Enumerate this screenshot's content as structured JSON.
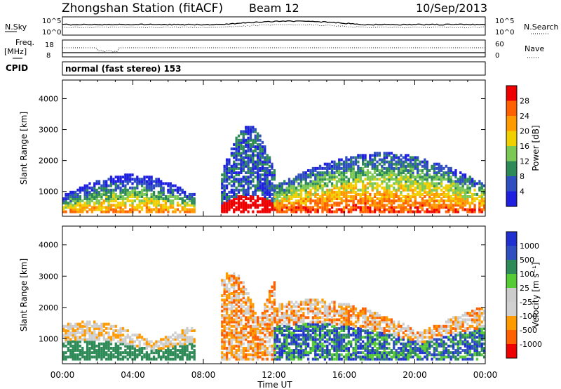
{
  "header": {
    "station": "Zhongshan Station (fitACF)",
    "beam": "Beam 12",
    "date": "10/Sep/2013"
  },
  "top_panels": {
    "nsky_label": "N.Sky",
    "nsky_ticks": [
      "10^5",
      "10^0"
    ],
    "nsearch_label": "N.Search",
    "nsearch_ticks": [
      "10^5",
      "10^0"
    ],
    "freq_label": "Freq.",
    "freq_unit": "[MHz]",
    "freq_ticks": [
      "18",
      "8"
    ],
    "nave_label": "Nave",
    "nave_ticks": [
      "60",
      "0"
    ],
    "cpid_label": "CPID",
    "cpid_text": "normal (fast stereo) 153"
  },
  "colors": {
    "power_scale": [
      "#1f1fe0",
      "#2f4fc0",
      "#2e8b57",
      "#7cc855",
      "#f0d000",
      "#ff9a00",
      "#ff6000",
      "#ee0000"
    ],
    "velocity_scale": [
      "#ee0000",
      "#ff6000",
      "#ff9a00",
      "#d0d0d0",
      "#cccccc",
      "#55cc33",
      "#2e8b57",
      "#2f4fc0",
      "#1f2fd0"
    ]
  },
  "chart_data": [
    {
      "type": "heatmap",
      "title": "Power",
      "xlabel": "Time UT",
      "ylabel": "Slant Range [km]",
      "x_ticks": [
        "00:00",
        "04:00",
        "08:00",
        "12:00",
        "16:00",
        "20:00",
        "00:00"
      ],
      "y_ticks": [
        "1000",
        "2000",
        "3000",
        "4000"
      ],
      "ylim": [
        200,
        4600
      ],
      "xlim_hours": [
        0,
        24
      ],
      "colorbar_label": "Power [dB]",
      "colorbar_ticks": [
        "4",
        "8",
        "12",
        "16",
        "20",
        "24",
        "28"
      ],
      "colorbar_range": [
        0,
        32
      ],
      "echo_regions": [
        {
          "t0": 0,
          "t1": 7.5,
          "r0": 300,
          "r1": 1500,
          "level": "medium-high"
        },
        {
          "t0": 9,
          "t1": 12,
          "r0": 300,
          "r1": 3100,
          "level": "high-low"
        },
        {
          "t0": 12,
          "t1": 24,
          "r0": 300,
          "r1": 2200,
          "level": "high"
        }
      ]
    },
    {
      "type": "heatmap",
      "title": "Velocity",
      "xlabel": "Time UT",
      "ylabel": "Slant Range [km]",
      "x_ticks": [
        "00:00",
        "04:00",
        "08:00",
        "12:00",
        "16:00",
        "20:00",
        "00:00"
      ],
      "y_ticks": [
        "1000",
        "2000",
        "3000",
        "4000"
      ],
      "ylim": [
        200,
        4600
      ],
      "xlim_hours": [
        0,
        24
      ],
      "colorbar_label": "Velocity [m s⁻¹]",
      "colorbar_ticks": [
        "1000",
        "500",
        "100",
        "25",
        "-25",
        "-100",
        "-500",
        "-1000"
      ],
      "echo_regions": [
        {
          "t0": 0,
          "t1": 7.5,
          "r0": 300,
          "r1": 1500,
          "level": "mixed"
        },
        {
          "t0": 9,
          "t1": 12,
          "r0": 300,
          "r1": 3100,
          "level": "negative"
        },
        {
          "t0": 12,
          "t1": 24,
          "r0": 300,
          "r1": 2200,
          "level": "positive"
        }
      ]
    }
  ]
}
